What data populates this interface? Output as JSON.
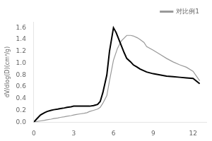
{
  "chart_data": {
    "type": "line",
    "ylabel": "dV/dlog(D)(cm³/g)",
    "xlim": [
      0,
      13
    ],
    "xticks": [
      0,
      3,
      6,
      9,
      12
    ],
    "ylim": [
      0.0,
      1.7
    ],
    "yticks": [
      {
        "value": 0.0,
        "label": "0.0"
      },
      0.2,
      0.4,
      0.6,
      0.8,
      {
        "value": 1.0,
        "label": "1.0"
      },
      1.2,
      1.4,
      1.6
    ],
    "grid": false,
    "legend": "upper right",
    "series": [
      {
        "name": "对比例1",
        "color": "#999999",
        "x": [
          0,
          0.2,
          0.5,
          0.8,
          1.0,
          1.3,
          1.5,
          1.8,
          2.0,
          2.3,
          2.5,
          2.8,
          3.0,
          3.2,
          3.5,
          3.8,
          4.0,
          4.2,
          4.5,
          4.8,
          5.0,
          5.2,
          5.5,
          5.7,
          6.0,
          6.3,
          6.6,
          7.0,
          7.3,
          7.5,
          7.8,
          8.0,
          8.3,
          8.5,
          9.0,
          9.5,
          10.0,
          10.5,
          11.0,
          11.5,
          12.0,
          12.5
        ],
        "values": [
          0.0,
          0.01,
          0.02,
          0.03,
          0.04,
          0.05,
          0.06,
          0.07,
          0.08,
          0.09,
          0.1,
          0.11,
          0.12,
          0.13,
          0.14,
          0.15,
          0.16,
          0.18,
          0.2,
          0.22,
          0.25,
          0.32,
          0.45,
          0.7,
          1.05,
          1.25,
          1.38,
          1.47,
          1.47,
          1.46,
          1.43,
          1.4,
          1.35,
          1.28,
          1.22,
          1.15,
          1.08,
          1.02,
          0.97,
          0.93,
          0.86,
          0.7
        ]
      },
      {
        "color": "#000000",
        "x": [
          0,
          0.2,
          0.5,
          0.8,
          1.0,
          1.3,
          1.5,
          1.8,
          2.0,
          2.3,
          2.5,
          2.8,
          3.0,
          3.2,
          3.5,
          3.8,
          4.0,
          4.2,
          4.5,
          4.8,
          5.0,
          5.2,
          5.5,
          5.7,
          6.0,
          6.2,
          6.5,
          6.8,
          7.0,
          7.3,
          7.5,
          7.8,
          8.0,
          8.5,
          9.0,
          9.5,
          10.0,
          10.5,
          11.0,
          11.5,
          12.0,
          12.5
        ],
        "values": [
          0.0,
          0.05,
          0.12,
          0.16,
          0.18,
          0.2,
          0.21,
          0.22,
          0.23,
          0.24,
          0.25,
          0.26,
          0.27,
          0.27,
          0.27,
          0.27,
          0.27,
          0.27,
          0.28,
          0.3,
          0.35,
          0.5,
          0.8,
          1.2,
          1.6,
          1.52,
          1.35,
          1.18,
          1.08,
          1.02,
          0.97,
          0.93,
          0.9,
          0.85,
          0.82,
          0.8,
          0.78,
          0.77,
          0.76,
          0.75,
          0.74,
          0.65
        ]
      }
    ]
  }
}
